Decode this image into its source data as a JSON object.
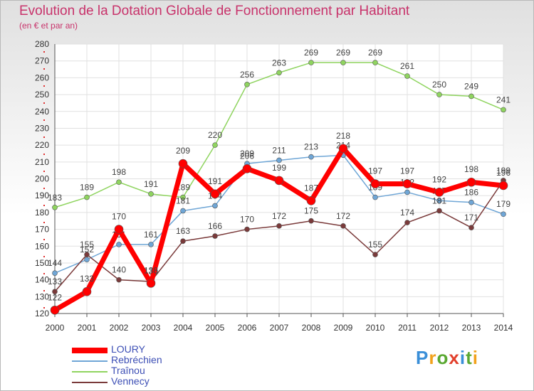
{
  "title": "Evolution de la Dotation Globale de Fonctionnement par Habitant",
  "subtitle": "(en € et par an)",
  "logo": {
    "text": "Proxiti",
    "colors": [
      "#3a8fd8",
      "#f2a21c",
      "#5aa832",
      "#e2402c",
      "#3a8fd8",
      "#5aa832",
      "#f2a21c"
    ]
  },
  "chart_data": {
    "type": "line",
    "x": [
      "2000",
      "2001",
      "2002",
      "2003",
      "2004",
      "2005",
      "2006",
      "2007",
      "2008",
      "2009",
      "2010",
      "2011",
      "2012",
      "2013",
      "2014"
    ],
    "ylim": [
      120,
      280
    ],
    "yticks": [
      120,
      130,
      140,
      150,
      160,
      170,
      180,
      190,
      200,
      210,
      220,
      230,
      240,
      250,
      260,
      270,
      280
    ],
    "grid": true,
    "legend_position": "bottom-left",
    "series": [
      {
        "name": "Traînou",
        "color": "#8fd45f",
        "values": [
          183,
          189,
          198,
          191,
          189,
          220,
          256,
          263,
          269,
          269,
          269,
          261,
          250,
          249,
          241
        ]
      },
      {
        "name": "Rebréchien",
        "color": "#6fa6d6",
        "values": [
          144,
          152,
          161,
          161,
          181,
          184,
          209,
          211,
          213,
          214,
          189,
          192,
          187,
          186,
          179
        ]
      },
      {
        "name": "Vennecy",
        "color": "#7a3a3a",
        "values": [
          133,
          155,
          140,
          139,
          163,
          166,
          170,
          172,
          175,
          172,
          155,
          174,
          181,
          171,
          199
        ]
      },
      {
        "name": "LOURY",
        "color": "#ff0000",
        "values": [
          122,
          133,
          170,
          138,
          209,
          191,
          206,
          199,
          187,
          218,
          197,
          197,
          192,
          198,
          196
        ]
      }
    ],
    "legend_order": [
      "LOURY",
      "Rebréchien",
      "Traînou",
      "Vennecy"
    ]
  }
}
